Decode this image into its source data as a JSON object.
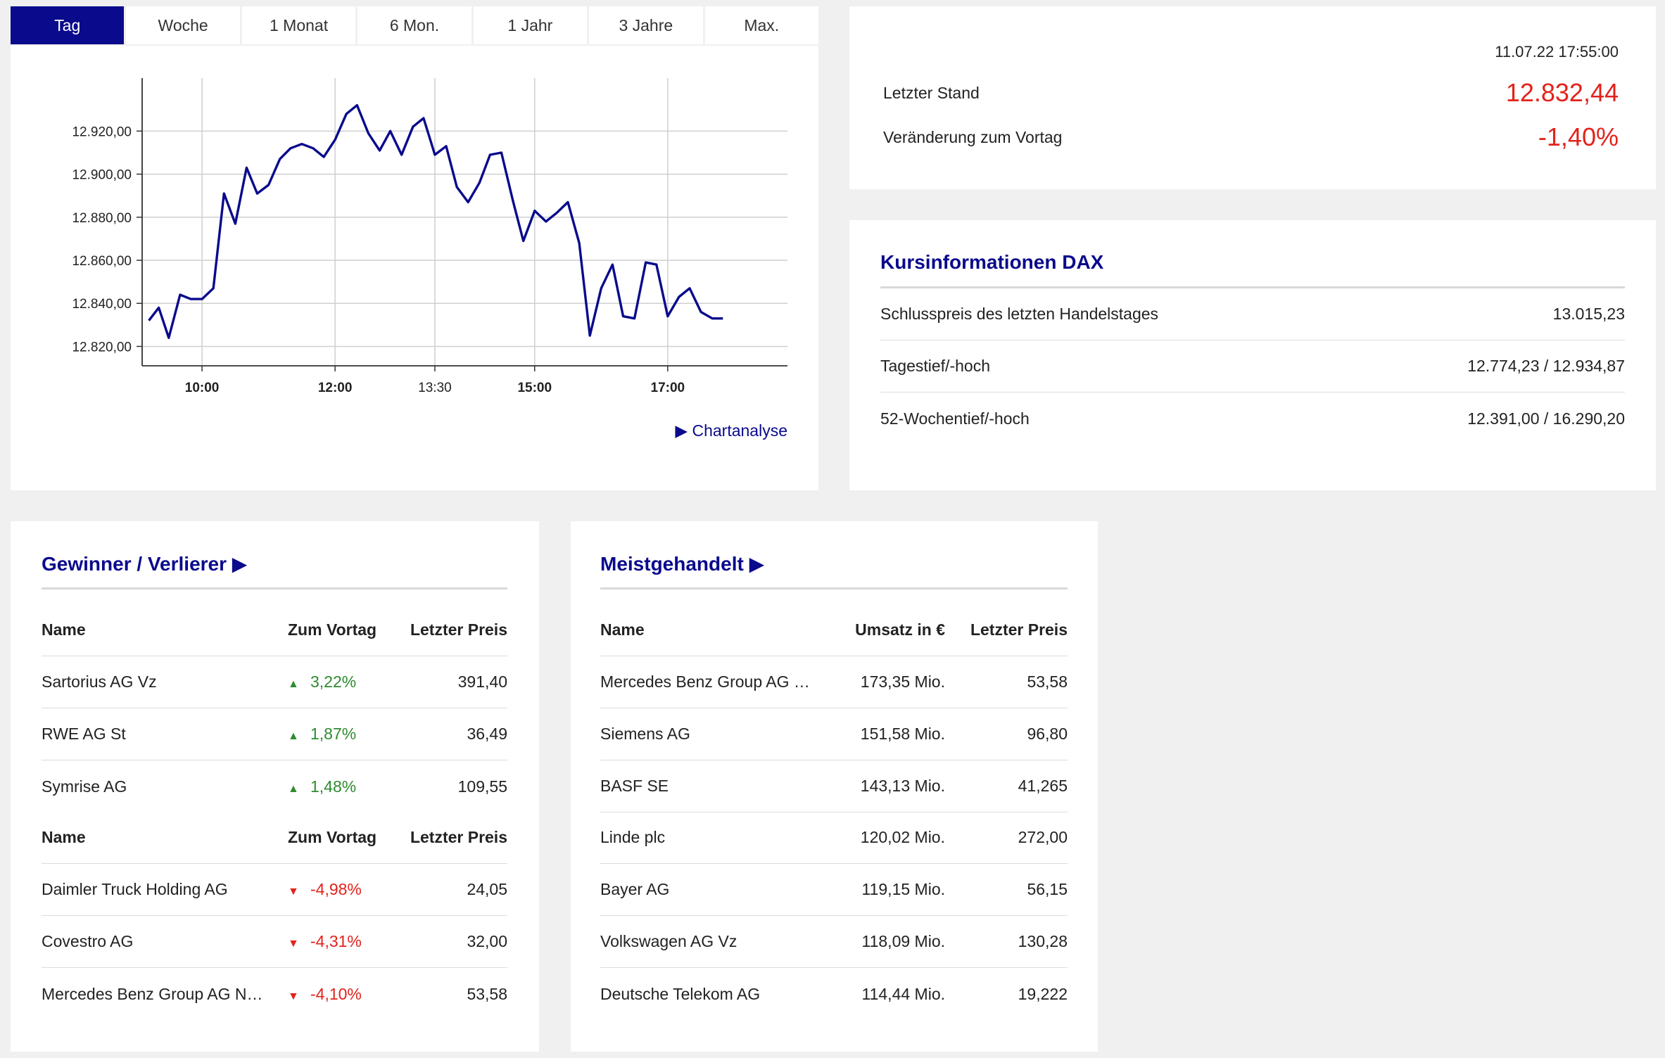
{
  "tabs": [
    "Tag",
    "Woche",
    "1 Monat",
    "6 Mon.",
    "1 Jahr",
    "3 Jahre",
    "Max."
  ],
  "active_tab": 0,
  "chart_link": "Chartanalyse",
  "chart_data": {
    "type": "line",
    "title": "",
    "xlabel": "",
    "ylabel": "",
    "x_tick_labels": [
      "10:00",
      "12:00",
      "13:30",
      "15:00",
      "17:00"
    ],
    "x_tick_hours": [
      10,
      12,
      13.5,
      15,
      17
    ],
    "x_tick_bold": [
      true,
      true,
      false,
      true,
      true
    ],
    "xlim": [
      9.1,
      18.8
    ],
    "y_ticks": [
      12820,
      12840,
      12860,
      12880,
      12900,
      12920
    ],
    "y_tick_labels": [
      "12.820,00",
      "12.840,00",
      "12.860,00",
      "12.880,00",
      "12.900,00",
      "12.920,00"
    ],
    "ylim": [
      12811,
      12942
    ],
    "grid": true,
    "series": [
      {
        "color": "#0a0a8c",
        "x": [
          9.2,
          9.35,
          9.5,
          9.67,
          9.83,
          10.0,
          10.17,
          10.33,
          10.5,
          10.67,
          10.83,
          11.0,
          11.17,
          11.33,
          11.5,
          11.67,
          11.83,
          12.0,
          12.17,
          12.33,
          12.5,
          12.67,
          12.83,
          13.0,
          13.17,
          13.33,
          13.5,
          13.67,
          13.83,
          14.0,
          14.17,
          14.33,
          14.5,
          14.67,
          14.83,
          15.0,
          15.17,
          15.33,
          15.5,
          15.67,
          15.83,
          16.0,
          16.17,
          16.33,
          16.5,
          16.67,
          16.83,
          17.0,
          17.17,
          17.33,
          17.5,
          17.67,
          17.83
        ],
        "y": [
          12832,
          12838,
          12824,
          12844,
          12842,
          12842,
          12847,
          12891,
          12877,
          12903,
          12891,
          12895,
          12907,
          12912,
          12914,
          12912,
          12908,
          12916,
          12928,
          12932,
          12919,
          12911,
          12920,
          12909,
          12922,
          12926,
          12909,
          12913,
          12894,
          12887,
          12896,
          12909,
          12910,
          12888,
          12869,
          12883,
          12878,
          12882,
          12887,
          12868,
          12825,
          12847,
          12858,
          12834,
          12833,
          12859,
          12858,
          12834,
          12843,
          12847,
          12836,
          12833,
          12833
        ]
      }
    ]
  },
  "index": {
    "timestamp": "11.07.22 17:55:00",
    "last_label": "Letzter Stand",
    "last_value": "12.832,44",
    "change_label": "Veränderung zum Vortag",
    "change_value": "-1,40%",
    "negative_color": "#e3221b"
  },
  "kurs": {
    "title": "Kursinformationen DAX",
    "rows": [
      {
        "label": "Schlusspreis des letzten Handelstages",
        "value": "13.015,23"
      },
      {
        "label": "Tagestief/-hoch",
        "value": "12.774,23 / 12.934,87"
      },
      {
        "label": "52-Wochentief/-hoch",
        "value": "12.391,00 / 16.290,20"
      }
    ]
  },
  "gv": {
    "title": "Gewinner / Verlierer ▶",
    "header": {
      "name": "Name",
      "change": "Zum Vortag",
      "price": "Letzter Preis"
    },
    "winners": [
      {
        "name": "Sartorius AG Vz",
        "change": "3,22%",
        "price": "391,40"
      },
      {
        "name": "RWE AG St",
        "change": "1,87%",
        "price": "36,49"
      },
      {
        "name": "Symrise AG",
        "change": "1,48%",
        "price": "109,55"
      }
    ],
    "losers": [
      {
        "name": "Daimler Truck Holding AG",
        "change": "-4,98%",
        "price": "24,05"
      },
      {
        "name": "Covestro AG",
        "change": "-4,31%",
        "price": "32,00"
      },
      {
        "name": "Mercedes Benz Group AG Na...",
        "change": "-4,10%",
        "price": "53,58"
      }
    ],
    "up_color": "#2e8b2e",
    "down_color": "#e3221b"
  },
  "mg": {
    "title": "Meistgehandelt ▶",
    "header": {
      "name": "Name",
      "volume": "Umsatz in €",
      "price": "Letzter Preis"
    },
    "rows": [
      {
        "name": "Mercedes Benz Group AG Na...",
        "volume": "173,35 Mio.",
        "price": "53,58"
      },
      {
        "name": "Siemens AG",
        "volume": "151,58 Mio.",
        "price": "96,80"
      },
      {
        "name": "BASF SE",
        "volume": "143,13 Mio.",
        "price": "41,265"
      },
      {
        "name": "Linde plc",
        "volume": "120,02 Mio.",
        "price": "272,00"
      },
      {
        "name": "Bayer AG",
        "volume": "119,15 Mio.",
        "price": "56,15"
      },
      {
        "name": "Volkswagen AG Vz",
        "volume": "118,09 Mio.",
        "price": "130,28"
      },
      {
        "name": "Deutsche Telekom AG",
        "volume": "114,44 Mio.",
        "price": "19,222"
      }
    ]
  }
}
